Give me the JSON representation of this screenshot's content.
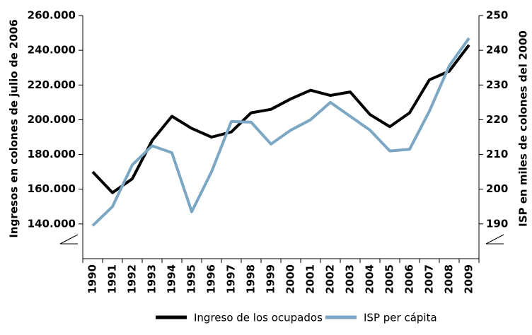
{
  "chart_data": {
    "type": "line",
    "y_label": "Ingresos en colones de julio de 2006",
    "y2_label": "ISP en miles de colones del 2000",
    "categories": [
      "1990",
      "1991",
      "1992",
      "1993",
      "1994",
      "1995",
      "1996",
      "1997",
      "1998",
      "1999",
      "2000",
      "2001",
      "2002",
      "2003",
      "2004",
      "2005",
      "2006",
      "2007",
      "2008",
      "2009"
    ],
    "series": [
      {
        "name": "Ingreso de los ocupados",
        "color": "#000000",
        "axis": "y",
        "values": [
          170000,
          158000,
          166000,
          188000,
          202000,
          195000,
          190000,
          193000,
          204000,
          206000,
          212000,
          217000,
          214000,
          216000,
          203000,
          196000,
          204000,
          223000,
          228000,
          243000
        ]
      },
      {
        "name": "ISP per cápita",
        "color": "#7ba7c4",
        "axis": "y2",
        "values": [
          189.5,
          195,
          207,
          212.5,
          210.5,
          193.5,
          205,
          219.5,
          219.3,
          213,
          217,
          220,
          225,
          221,
          217,
          211,
          211.5,
          222.5,
          235.5,
          243.5
        ]
      }
    ],
    "ylim": [
      120000,
      260000
    ],
    "yticks": [
      {
        "value": 140000,
        "label": "140.000"
      },
      {
        "value": 160000,
        "label": "160.000"
      },
      {
        "value": 180000,
        "label": "180.000"
      },
      {
        "value": 200000,
        "label": "200.000"
      },
      {
        "value": 220000,
        "label": "220.000"
      },
      {
        "value": 240000,
        "label": "240.000"
      },
      {
        "value": 260000,
        "label": "260.000"
      }
    ],
    "y2lim": [
      180,
      250
    ],
    "y2ticks": [
      190,
      200,
      210,
      220,
      230,
      240,
      250
    ],
    "grid": false
  }
}
